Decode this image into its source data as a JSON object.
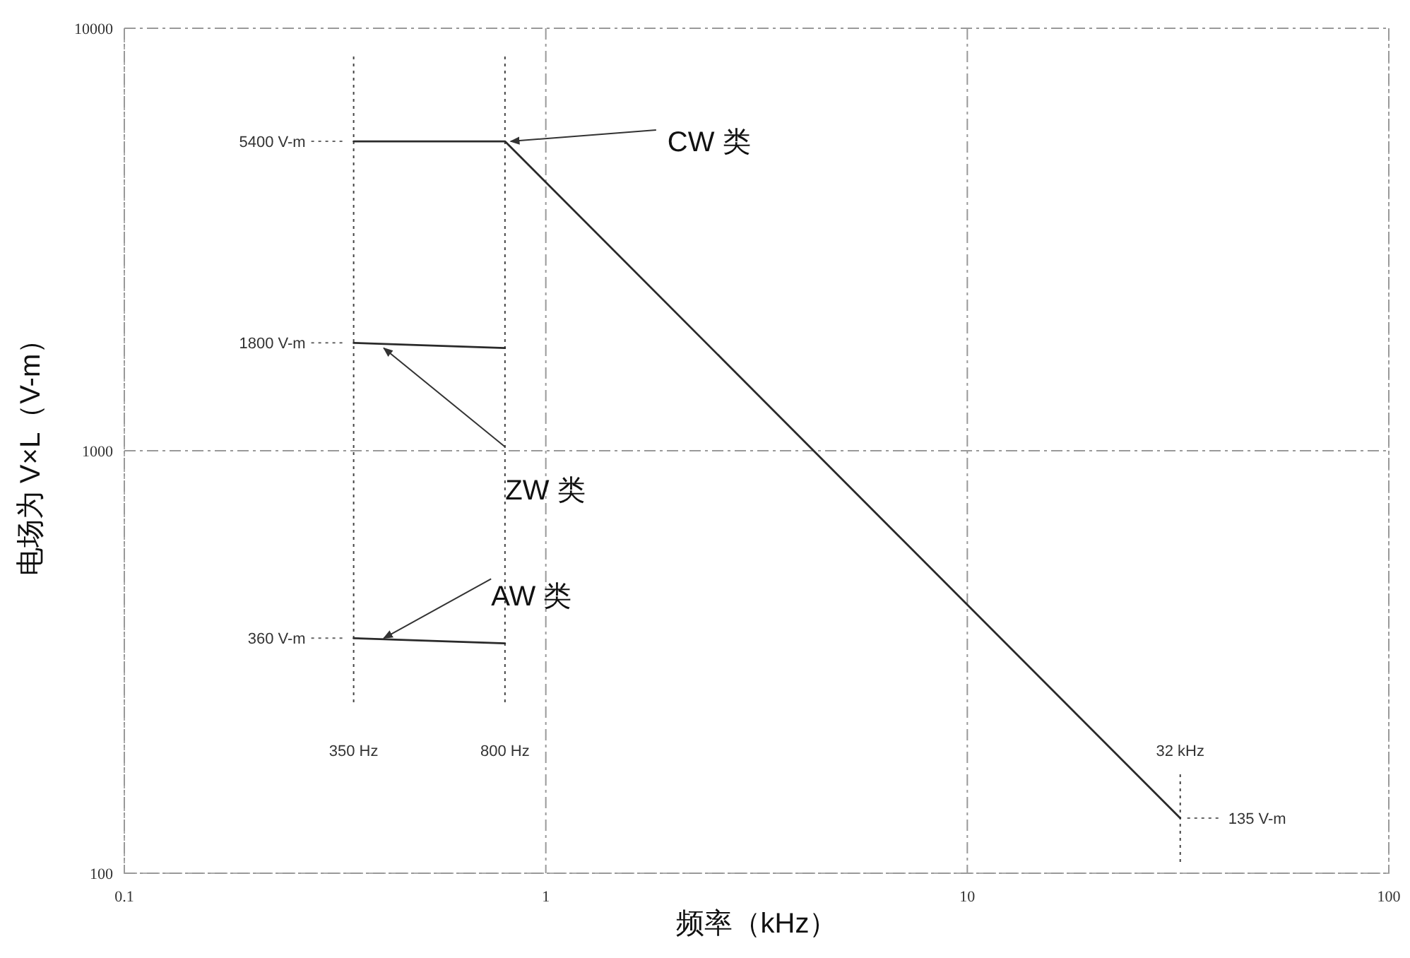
{
  "chart_data": {
    "type": "line",
    "xlabel": "频率（kHz）",
    "ylabel": "电场为 V×L（V-m）",
    "log": "xy",
    "xlim": [
      0.1,
      100
    ],
    "ylim": [
      100,
      10000
    ],
    "xticks": [
      0.1,
      1,
      10,
      100
    ],
    "yticks": [
      100,
      1000,
      10000
    ],
    "grid": true,
    "marker": "none",
    "line_style": "solid",
    "series": [
      {
        "color": "#2a2a2a",
        "x": [
          0.35,
          0.8,
          32
        ],
        "values": [
          5400,
          5400,
          135
        ]
      },
      {
        "color": "#2a2a2a",
        "x": [
          0.35,
          0.8
        ],
        "values": [
          1800,
          1750
        ]
      },
      {
        "color": "#2a2a2a",
        "x": [
          0.35,
          0.8
        ],
        "values": [
          360,
          350
        ]
      }
    ],
    "ref_lines": [
      {
        "axis": "x",
        "value": 0.35,
        "label": "350 Hz",
        "line_style": "dotted"
      },
      {
        "axis": "x",
        "value": 0.8,
        "label": "800 Hz",
        "line_style": "dotted"
      },
      {
        "axis": "x",
        "value": 32,
        "label": "32 kHz",
        "line_style": "dotted"
      }
    ],
    "annotations": [
      {
        "text": "CW 类",
        "x": 0.8,
        "y": 5400
      },
      {
        "text": "ZW 类",
        "x": 0.4,
        "y": 1750
      },
      {
        "text": "AW 类",
        "x": 0.4,
        "y": 360
      },
      {
        "text": "5400 V-m",
        "x": 0.35,
        "y": 5400
      },
      {
        "text": "1800 V-m",
        "x": 0.35,
        "y": 1800
      },
      {
        "text": "360 V-m",
        "x": 0.35,
        "y": 360
      },
      {
        "text": "135 V-m",
        "x": 32,
        "y": 135
      }
    ]
  }
}
